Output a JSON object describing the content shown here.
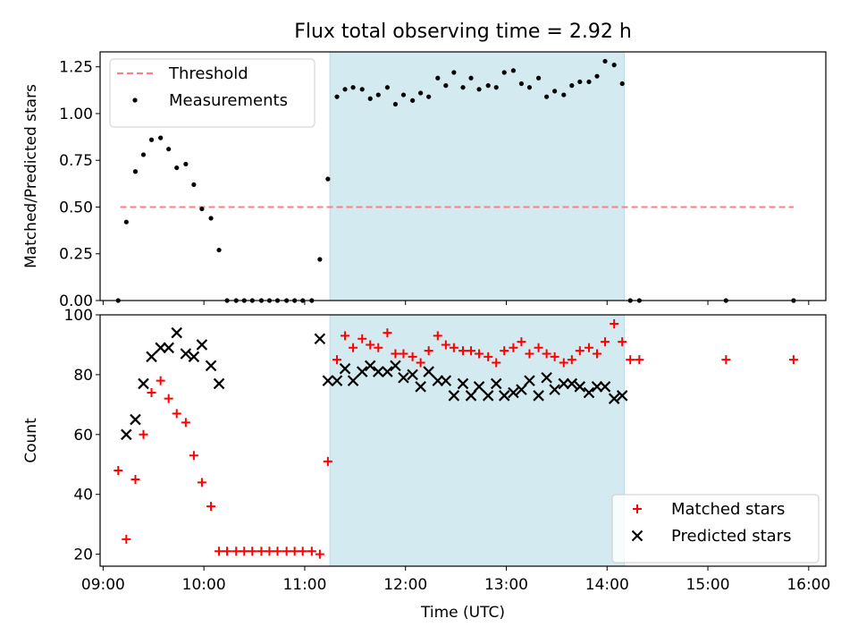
{
  "title": "Flux total observing time = 2.92 h",
  "chart_data": [
    {
      "type": "scatter",
      "ylabel": "Matched/Predicted stars",
      "ylim": [
        0,
        1.33
      ],
      "xlim": [
        8.97,
        16.17
      ],
      "yticks": [
        0,
        0.25,
        0.5,
        0.75,
        1.0,
        1.25
      ],
      "ytick_labels": [
        "0.00",
        "0.25",
        "0.50",
        "0.75",
        "1.00",
        "1.25"
      ],
      "shaded_span": {
        "x_start": 11.25,
        "x_end": 14.17,
        "color": "#d3eaf0"
      },
      "legend": {
        "placement": "upper left",
        "entries": [
          "Threshold",
          "Measurements"
        ]
      },
      "threshold": {
        "name": "Threshold",
        "value": 0.5,
        "x_start": 9.17,
        "x_end": 15.85,
        "color": "#ff7f7f"
      },
      "series": [
        {
          "name": "Measurements",
          "marker": "dot",
          "color": "#000000",
          "x": [
            9.15,
            9.23,
            9.32,
            9.4,
            9.48,
            9.57,
            9.65,
            9.73,
            9.82,
            9.9,
            9.98,
            10.07,
            10.15,
            10.23,
            10.32,
            10.4,
            10.48,
            10.57,
            10.65,
            10.73,
            10.82,
            10.9,
            10.98,
            11.07,
            11.15,
            11.23,
            11.32,
            11.4,
            11.48,
            11.57,
            11.65,
            11.73,
            11.82,
            11.9,
            11.98,
            12.07,
            12.15,
            12.23,
            12.32,
            12.4,
            12.48,
            12.57,
            12.65,
            12.73,
            12.82,
            12.9,
            12.98,
            13.07,
            13.15,
            13.23,
            13.32,
            13.4,
            13.48,
            13.57,
            13.65,
            13.73,
            13.82,
            13.9,
            13.98,
            14.07,
            14.15,
            14.23,
            14.32,
            15.18,
            15.85
          ],
          "y": [
            0.0,
            0.42,
            0.69,
            0.78,
            0.86,
            0.87,
            0.81,
            0.71,
            0.73,
            0.62,
            0.49,
            0.44,
            0.27,
            0.0,
            0.0,
            0.0,
            0.0,
            0.0,
            0.0,
            0.0,
            0.0,
            0.0,
            0.0,
            0.0,
            0.22,
            0.65,
            1.09,
            1.13,
            1.14,
            1.13,
            1.08,
            1.1,
            1.14,
            1.05,
            1.1,
            1.07,
            1.11,
            1.09,
            1.19,
            1.15,
            1.22,
            1.14,
            1.19,
            1.13,
            1.15,
            1.14,
            1.22,
            1.23,
            1.16,
            1.14,
            1.19,
            1.09,
            1.12,
            1.1,
            1.15,
            1.17,
            1.17,
            1.2,
            1.28,
            1.26,
            1.16,
            0.0,
            0.0,
            0.0,
            0.0
          ]
        }
      ]
    },
    {
      "type": "scatter",
      "xlabel": "Time (UTC)",
      "ylabel": "Count",
      "ylim": [
        16,
        100
      ],
      "xlim": [
        8.97,
        16.17
      ],
      "yticks": [
        20,
        40,
        60,
        80,
        100
      ],
      "ytick_labels": [
        "20",
        "40",
        "60",
        "80",
        "100"
      ],
      "xticks": [
        9,
        10,
        11,
        12,
        13,
        14,
        15,
        16
      ],
      "xtick_labels": [
        "09:00",
        "10:00",
        "11:00",
        "12:00",
        "13:00",
        "14:00",
        "15:00",
        "16:00"
      ],
      "shaded_span": {
        "x_start": 11.25,
        "x_end": 14.17,
        "color": "#d3eaf0"
      },
      "legend": {
        "placement": "lower right",
        "entries": [
          "Matched stars",
          "Predicted stars"
        ]
      },
      "series": [
        {
          "name": "Matched stars",
          "marker": "plus",
          "color": "#ff0000",
          "x": [
            9.15,
            9.23,
            9.32,
            9.4,
            9.48,
            9.57,
            9.65,
            9.73,
            9.82,
            9.9,
            9.98,
            10.07,
            10.15,
            10.23,
            10.32,
            10.4,
            10.48,
            10.57,
            10.65,
            10.73,
            10.82,
            10.9,
            10.98,
            11.07,
            11.15,
            11.23,
            11.32,
            11.4,
            11.48,
            11.57,
            11.65,
            11.73,
            11.82,
            11.9,
            11.98,
            12.07,
            12.15,
            12.23,
            12.32,
            12.4,
            12.48,
            12.57,
            12.65,
            12.73,
            12.82,
            12.9,
            12.98,
            13.07,
            13.15,
            13.23,
            13.32,
            13.4,
            13.48,
            13.57,
            13.65,
            13.73,
            13.82,
            13.9,
            13.98,
            14.07,
            14.15,
            14.23,
            14.32,
            15.18,
            15.85
          ],
          "y": [
            48,
            25,
            45,
            60,
            74,
            78,
            72,
            67,
            64,
            53,
            44,
            36,
            21,
            21,
            21,
            21,
            21,
            21,
            21,
            21,
            21,
            21,
            21,
            21,
            20,
            51,
            85,
            93,
            89,
            92,
            90,
            89,
            94,
            87,
            87,
            86,
            84,
            88,
            93,
            90,
            89,
            88,
            88,
            87,
            86,
            84,
            88,
            89,
            91,
            87,
            89,
            87,
            86,
            84,
            85,
            88,
            89,
            87,
            91,
            97,
            91,
            85,
            85,
            85,
            85
          ]
        },
        {
          "name": "Predicted stars",
          "marker": "x",
          "color": "#000000",
          "x": [
            9.23,
            9.32,
            9.4,
            9.48,
            9.57,
            9.65,
            9.73,
            9.82,
            9.9,
            9.98,
            10.07,
            10.15,
            11.15,
            11.23,
            11.32,
            11.4,
            11.48,
            11.57,
            11.65,
            11.73,
            11.82,
            11.9,
            11.98,
            12.07,
            12.15,
            12.23,
            12.32,
            12.4,
            12.48,
            12.57,
            12.65,
            12.73,
            12.82,
            12.9,
            12.98,
            13.07,
            13.15,
            13.23,
            13.32,
            13.4,
            13.48,
            13.57,
            13.65,
            13.73,
            13.82,
            13.9,
            13.98,
            14.07,
            14.15
          ],
          "y": [
            60,
            65,
            77,
            86,
            89,
            89,
            94,
            87,
            86,
            90,
            83,
            77,
            92,
            78,
            78,
            82,
            78,
            81,
            83,
            81,
            81,
            83,
            79,
            80,
            76,
            81,
            78,
            78,
            73,
            77,
            73,
            76,
            73,
            77,
            73,
            74,
            75,
            78,
            73,
            79,
            75,
            77,
            77,
            76,
            74,
            76,
            76,
            72,
            73
          ]
        }
      ]
    }
  ]
}
